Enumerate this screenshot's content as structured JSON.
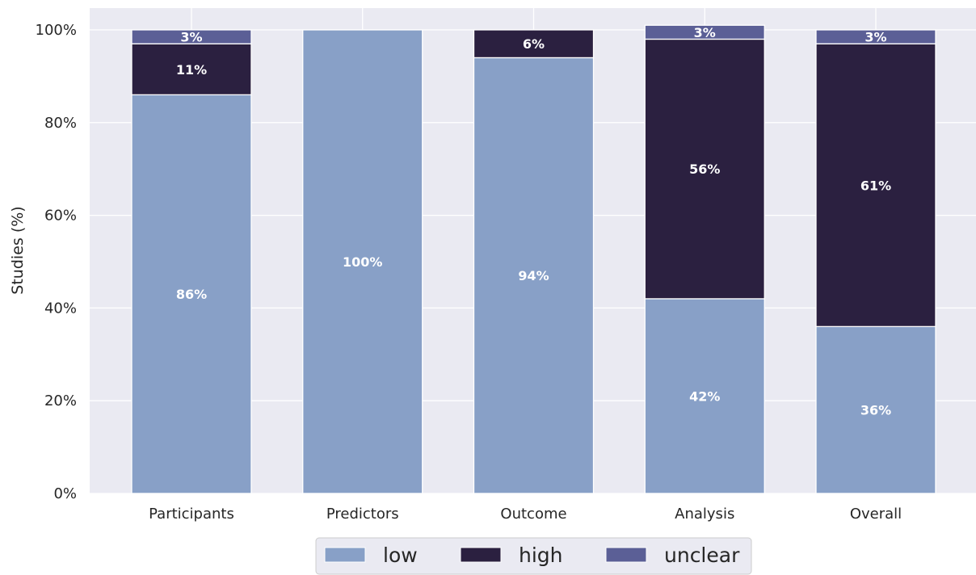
{
  "chart_data": {
    "type": "bar",
    "stacked": true,
    "categories": [
      "Participants",
      "Predictors",
      "Outcome",
      "Analysis",
      "Overall"
    ],
    "series": [
      {
        "name": "low",
        "values": [
          86,
          100,
          94,
          42,
          36
        ],
        "color": "#88a0c7"
      },
      {
        "name": "high",
        "values": [
          11,
          0,
          6,
          56,
          61
        ],
        "color": "#2b2040"
      },
      {
        "name": "unclear",
        "values": [
          3,
          0,
          0,
          3,
          3
        ],
        "color": "#5b5f96"
      }
    ],
    "ylabel": "Studies (%)",
    "xlabel": "",
    "ylim": [
      0,
      100
    ],
    "yticks": [
      0,
      20,
      40,
      60,
      80,
      100
    ],
    "ytick_labels": [
      "0%",
      "20%",
      "40%",
      "60%",
      "80%",
      "100%"
    ],
    "value_suffix": "%",
    "grid": true,
    "legend_position": "bottom-center",
    "background": "#eaeaf2"
  }
}
